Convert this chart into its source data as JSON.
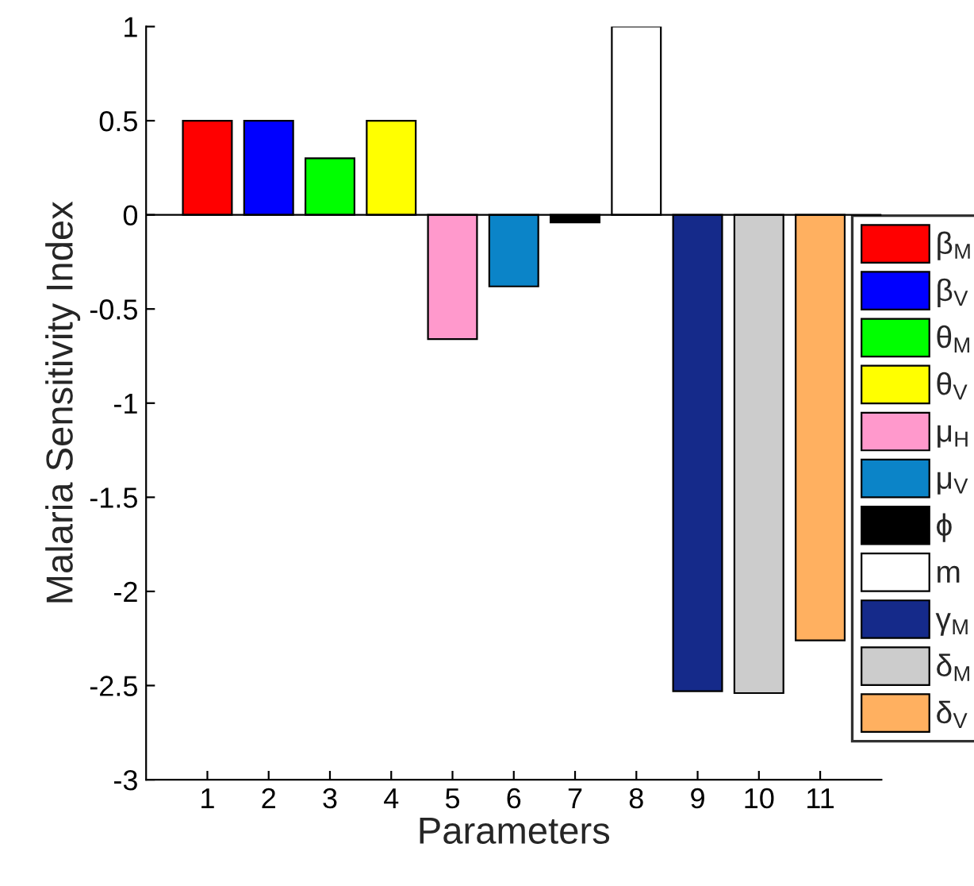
{
  "chart_data": {
    "type": "bar",
    "xlabel": "Parameters",
    "ylabel": "Malaria Sensitivity Index",
    "categories": [
      "1",
      "2",
      "3",
      "4",
      "5",
      "6",
      "7",
      "8",
      "9",
      "10",
      "11"
    ],
    "series": [
      {
        "name": "β$_{M}$",
        "color": "#ff0000",
        "values": [
          0.5,
          null,
          null,
          null,
          null,
          null,
          null,
          null,
          null,
          null,
          null
        ]
      },
      {
        "name": "β$_{V}$",
        "color": "#0000ff",
        "values": [
          null,
          0.5,
          null,
          null,
          null,
          null,
          null,
          null,
          null,
          null,
          null
        ]
      },
      {
        "name": "θ$_{M}$",
        "color": "#00ff00",
        "values": [
          null,
          null,
          0.3,
          null,
          null,
          null,
          null,
          null,
          null,
          null,
          null
        ]
      },
      {
        "name": "θ$_{V}$",
        "color": "#ffff00",
        "values": [
          null,
          null,
          null,
          0.5,
          null,
          null,
          null,
          null,
          null,
          null,
          null
        ]
      },
      {
        "name": "μ$_{H}$",
        "color": "#ff99cc",
        "values": [
          null,
          null,
          null,
          null,
          -0.66,
          null,
          null,
          null,
          null,
          null,
          null
        ]
      },
      {
        "name": "μ$_{V}$",
        "color": "#0b84c8",
        "values": [
          null,
          null,
          null,
          null,
          null,
          -0.38,
          null,
          null,
          null,
          null,
          null
        ]
      },
      {
        "name": "ϕ",
        "color": "#000000",
        "values": [
          null,
          null,
          null,
          null,
          null,
          null,
          -0.04,
          null,
          null,
          null,
          null
        ]
      },
      {
        "name": "m",
        "color": "#ffffff",
        "values": [
          null,
          null,
          null,
          null,
          null,
          null,
          null,
          1.0,
          null,
          null,
          null
        ]
      },
      {
        "name": "γ$_{M}$",
        "color": "#152a8a",
        "values": [
          null,
          null,
          null,
          null,
          null,
          null,
          null,
          null,
          -2.53,
          null,
          null
        ]
      },
      {
        "name": "δ$_{M}$",
        "color": "#cccccc",
        "values": [
          null,
          null,
          null,
          null,
          null,
          null,
          null,
          null,
          null,
          -2.54,
          null
        ]
      },
      {
        "name": "δ$_{V}$",
        "color": "#ffb060",
        "values": [
          null,
          null,
          null,
          null,
          null,
          null,
          null,
          null,
          null,
          null,
          -2.26
        ]
      }
    ],
    "ylim": [
      -3,
      1
    ],
    "yticks": [
      -3,
      -2.5,
      -2,
      -1.5,
      -1,
      -0.5,
      0,
      0.5,
      1
    ],
    "ref_lines": [
      {
        "axis": "y",
        "value": 0,
        "color": "#000000"
      }
    ],
    "legend": "right"
  }
}
